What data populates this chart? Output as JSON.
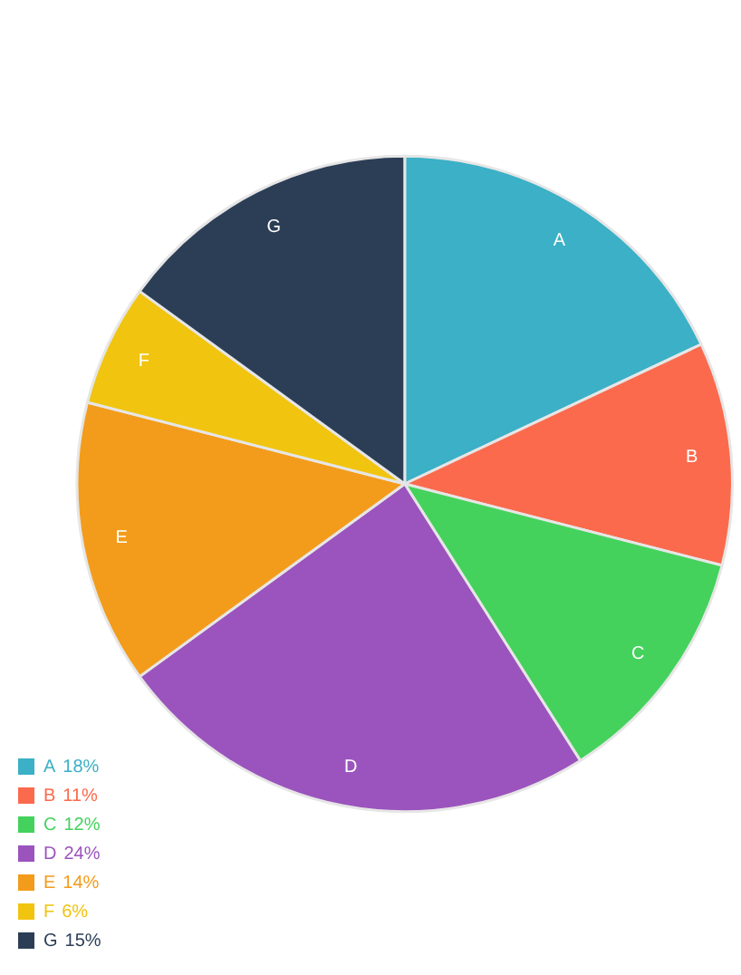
{
  "chart_data": {
    "type": "pie",
    "categories": [
      "A",
      "B",
      "C",
      "D",
      "E",
      "F",
      "G"
    ],
    "values": [
      18,
      11,
      12,
      24,
      14,
      6,
      15
    ],
    "value_labels": [
      "18%",
      "11%",
      "12%",
      "24%",
      "14%",
      "6%",
      "15%"
    ],
    "colors": [
      "#3bb0c6",
      "#fb6a4d",
      "#44d25c",
      "#9b54bd",
      "#f39c1b",
      "#f1c40f",
      "#2c3e56"
    ],
    "legend": "bottom left"
  }
}
